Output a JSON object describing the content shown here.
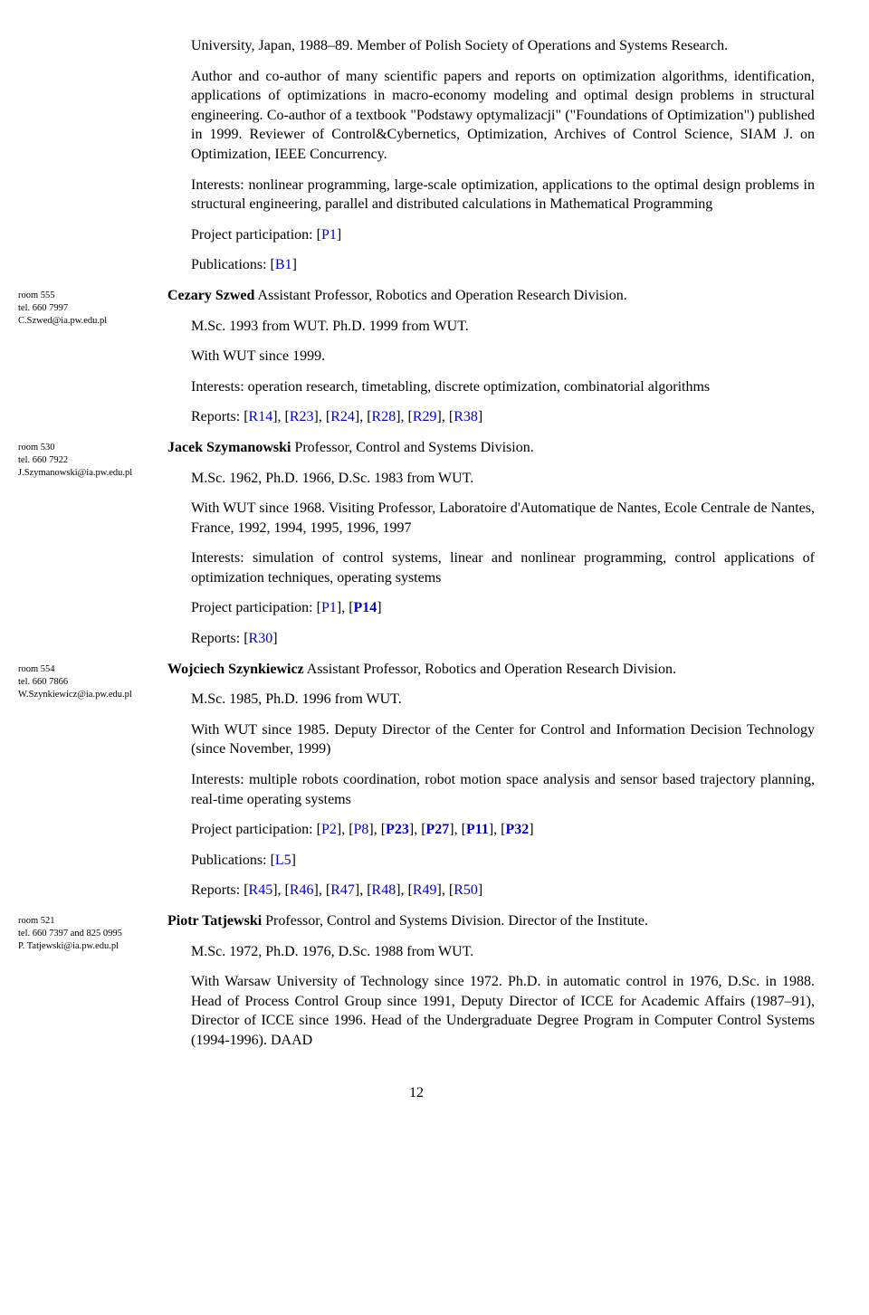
{
  "intro": {
    "p1": "University, Japan, 1988–89. Member of Polish Society of Operations and Systems Research.",
    "p2": "Author and co-author of many scientific papers and reports on optimization algorithms, identification, applications of optimizations in macro-economy modeling and optimal design problems in structural engineering. Co-author of a textbook \"Podstawy optymalizacji\" (\"Foundations of Optimization\") published in 1999. Reviewer of Control&Cybernetics, Optimization, Archives of Control Science, SIAM J. on Optimization, IEEE Concurrency.",
    "p3": "Interests: nonlinear programming, large-scale optimization, applications to the optimal design problems in structural engineering, parallel and distributed calculations in Mathematical Programming",
    "proj_label": "Project participation: [",
    "proj_ref": "P1",
    "pub_label": "Publications: [",
    "pub_ref": "B1"
  },
  "szwed": {
    "side_room": "room 555",
    "side_tel": "tel. 660 7997",
    "side_email": "C.Szwed@ia.pw.edu.pl",
    "name": "Cezary Szwed",
    "title": "  Assistant Professor, Robotics and Operation Research Division.",
    "degrees": "M.Sc. 1993 from WUT. Ph.D. 1999 from WUT.",
    "since": "With WUT since 1999.",
    "interests": "Interests: operation research, timetabling, discrete optimization, combinatorial algorithms",
    "reports_label": "Reports: ",
    "r1": "R14",
    "r2": "R23",
    "r3": "R24",
    "r4": "R28",
    "r5": "R29",
    "r6": "R38"
  },
  "szym": {
    "side_room": "room 530",
    "side_tel": "tel. 660 7922",
    "side_email": "J.Szymanowski@ia.pw.edu.pl",
    "name": "Jacek Szymanowski",
    "title": "  Professor, Control and Systems Division.",
    "degrees": "M.Sc. 1962, Ph.D. 1966, D.Sc. 1983 from WUT.",
    "since": "With WUT since 1968. Visiting Professor, Laboratoire d'Automatique de Nantes, Ecole Centrale de Nantes, France, 1992, 1994, 1995, 1996, 1997",
    "interests": "Interests: simulation of control systems, linear and nonlinear programming, control applications of optimization techniques, operating systems",
    "proj_label": "Project participation: ",
    "p1": "P1",
    "p14": "P14",
    "reports_label": "Reports: ",
    "r30": "R30"
  },
  "szynk": {
    "side_room": "room 554",
    "side_tel": "tel. 660 7866",
    "side_email": "W.Szynkiewicz@ia.pw.edu.pl",
    "name": "Wojciech Szynkiewicz",
    "title": "  Assistant Professor, Robotics and Operation Research Division.",
    "degrees": "M.Sc. 1985, Ph.D. 1996 from WUT.",
    "since": "With WUT since 1985. Deputy Director of the Center for Control and Information Decision Technology (since November, 1999)",
    "interests": "Interests: multiple robots coordination, robot motion space analysis and sensor based trajectory planning, real-time operating systems",
    "proj_label": "Project participation: ",
    "p2": "P2",
    "p8": "P8",
    "p23": "P23",
    "p27": "P27",
    "p11": "P11",
    "p32": "P32",
    "pub_label": "Publications: ",
    "l5": "L5",
    "reports_label": "Reports: ",
    "r45": "R45",
    "r46": "R46",
    "r47": "R47",
    "r48": "R48",
    "r49": "R49",
    "r50": "R50"
  },
  "tatj": {
    "side_room": "room 521",
    "side_tel": "tel. 660 7397 and 825 0995",
    "side_email": "P. Tatjewski@ia.pw.edu.pl",
    "name": "Piotr Tatjewski",
    "title": "  Professor, Control and Systems Division. Director of the Institute.",
    "degrees": "M.Sc. 1972, Ph.D. 1976, D.Sc. 1988 from WUT.",
    "since": "With Warsaw University of Technology since 1972. Ph.D. in automatic control in 1976, D.Sc. in 1988. Head of Process Control Group since 1991, Deputy Director of ICCE for Academic Affairs (1987–91), Director of ICCE since 1996. Head of the Undergraduate Degree Program in Computer Control Systems (1994-1996). DAAD"
  },
  "pagenum": "12",
  "brackets": {
    "open": "[",
    "close": "]",
    "comma": ", "
  }
}
